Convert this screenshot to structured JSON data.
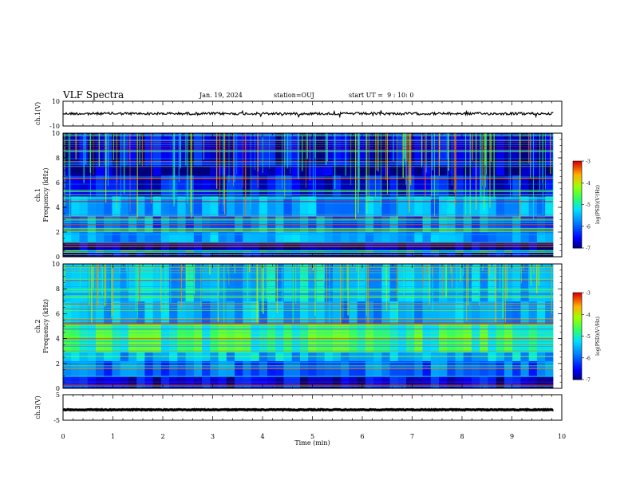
{
  "header": {
    "title": "VLF Spectra",
    "date": "Jan. 19, 2024",
    "station": "station=OUJ",
    "start_ut": "start UT =  9 : 10: 0"
  },
  "chart_data": [
    {
      "type": "line",
      "panel": "ch1-waveform",
      "ylabel": "ch.1(V)",
      "ylim": [
        -10,
        10
      ],
      "yticks": [
        "10",
        "-10"
      ],
      "x_range_min": [
        0,
        9.83
      ],
      "level": 0,
      "amplitude": 1.0,
      "color": "#000000"
    },
    {
      "type": "heatmap",
      "panel": "ch1-spectrogram",
      "ylabel": "ch.1\nFrequency (kHz)",
      "ylim": [
        0,
        10
      ],
      "yticks": [
        "0",
        "2",
        "4",
        "6",
        "8",
        "10"
      ],
      "x_range_min": [
        0,
        9.83
      ],
      "colorbar": {
        "label": "log(PSD)(V²/Hz)",
        "range": [
          -7,
          -3
        ],
        "ticks": [
          "-3",
          "-4",
          "-5",
          "-6",
          "-7"
        ]
      },
      "bands_khz": [
        {
          "lo": 0.0,
          "hi": 0.35,
          "level": -6.8
        },
        {
          "lo": 0.35,
          "hi": 0.55,
          "level": -4.6
        },
        {
          "lo": 0.55,
          "hi": 1.2,
          "level": -6.9
        },
        {
          "lo": 1.2,
          "hi": 2.0,
          "level": -5.6
        },
        {
          "lo": 2.0,
          "hi": 3.3,
          "level": -5.9
        },
        {
          "lo": 3.3,
          "hi": 4.9,
          "level": -5.6
        },
        {
          "lo": 4.9,
          "hi": 6.6,
          "level": -6.5
        },
        {
          "lo": 6.6,
          "hi": 7.4,
          "level": -6.9
        },
        {
          "lo": 7.4,
          "hi": 10.0,
          "level": -6.6
        }
      ]
    },
    {
      "type": "heatmap",
      "panel": "ch2-spectrogram",
      "ylabel": "ch.2\nFrequency (kHz)",
      "ylim": [
        0,
        10
      ],
      "yticks": [
        "0",
        "2",
        "4",
        "6",
        "8",
        "10"
      ],
      "x_range_min": [
        0,
        9.83
      ],
      "colorbar": {
        "label": "log(PSD)(V²/Hz)",
        "range": [
          -7,
          -3
        ],
        "ticks": [
          "-3",
          "-4",
          "-5",
          "-6",
          "-7"
        ]
      },
      "bands_khz": [
        {
          "lo": 0.0,
          "hi": 1.0,
          "level": -6.6
        },
        {
          "lo": 1.0,
          "hi": 2.2,
          "level": -6.0
        },
        {
          "lo": 2.2,
          "hi": 2.9,
          "level": -5.5
        },
        {
          "lo": 2.9,
          "hi": 5.2,
          "level": -4.8
        },
        {
          "lo": 5.2,
          "hi": 7.0,
          "level": -5.6
        },
        {
          "lo": 7.0,
          "hi": 10.0,
          "level": -5.4
        }
      ]
    },
    {
      "type": "line",
      "panel": "ch3-waveform",
      "ylabel": "ch.3(V)",
      "ylim": [
        -5,
        5
      ],
      "yticks": [
        "5",
        "-5"
      ],
      "x_range_min": [
        0,
        9.83
      ],
      "level": -0.9,
      "amplitude": 0.15,
      "color": "#000000"
    }
  ],
  "xaxis": {
    "label": "Time (min)",
    "xlim": [
      0,
      10
    ],
    "ticks": [
      "0",
      "1",
      "2",
      "3",
      "4",
      "5",
      "6",
      "7",
      "8",
      "9",
      "10"
    ]
  }
}
